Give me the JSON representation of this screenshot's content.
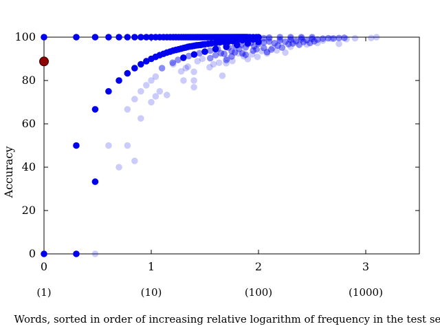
{
  "chart_data": {
    "type": "scatter",
    "title": "",
    "xlabel": "Words, sorted in order of increasing relative logarithm of frequency in the test set",
    "ylabel": "Accuracy",
    "xlim": [
      0,
      3.5
    ],
    "ylim": [
      0,
      100
    ],
    "x_ticks": [
      0,
      1,
      2,
      3
    ],
    "x_tick_labels": [
      "0",
      "1",
      "2",
      "3"
    ],
    "x_secondary_ticks": [
      0,
      1,
      2,
      3
    ],
    "x_secondary_tick_labels": [
      "(1)",
      "(10)",
      "(100)",
      "(1000)"
    ],
    "y_ticks": [
      0,
      20,
      40,
      60,
      80,
      100
    ],
    "y_tick_labels": [
      "0",
      "20",
      "40",
      "60",
      "80",
      "100"
    ],
    "grid": false,
    "legend": "none",
    "colors": {
      "point": "#0000ee",
      "highlight": "#8b0000",
      "axis": "#000000"
    },
    "highlight_point": {
      "x": 0,
      "y": 88.8
    },
    "series": [
      {
        "opacity": 1.0,
        "points": [
          [
            0,
            100
          ],
          [
            0,
            0
          ],
          [
            0.301,
            100
          ],
          [
            0.301,
            50
          ],
          [
            0.301,
            0
          ],
          [
            0.477,
            100
          ],
          [
            0.477,
            66.7
          ],
          [
            0.477,
            33.3
          ],
          [
            0.602,
            100
          ],
          [
            0.602,
            75
          ],
          [
            0.699,
            100
          ],
          [
            0.699,
            80
          ],
          [
            0.778,
            100
          ],
          [
            0.778,
            83.3
          ],
          [
            0.845,
            100
          ],
          [
            0.845,
            85.7
          ],
          [
            0.903,
            100
          ],
          [
            0.903,
            87.5
          ],
          [
            0.954,
            100
          ],
          [
            0.954,
            88.9
          ],
          [
            1.0,
            100
          ],
          [
            1.0,
            90
          ],
          [
            1.041,
            100
          ],
          [
            1.041,
            90.9
          ],
          [
            1.079,
            100
          ],
          [
            1.079,
            91.7
          ],
          [
            1.114,
            100
          ],
          [
            1.114,
            92.3
          ],
          [
            1.146,
            100
          ],
          [
            1.146,
            92.9
          ],
          [
            1.176,
            100
          ],
          [
            1.176,
            93.3
          ],
          [
            1.204,
            100
          ],
          [
            1.204,
            93.8
          ],
          [
            1.23,
            100
          ],
          [
            1.23,
            94.1
          ],
          [
            1.255,
            100
          ],
          [
            1.255,
            94.4
          ],
          [
            1.279,
            100
          ],
          [
            1.279,
            94.7
          ],
          [
            1.301,
            100
          ],
          [
            1.301,
            95
          ],
          [
            1.322,
            100
          ],
          [
            1.342,
            100
          ],
          [
            1.362,
            100
          ],
          [
            1.38,
            100
          ],
          [
            1.398,
            100
          ],
          [
            1.415,
            100
          ],
          [
            1.431,
            100
          ],
          [
            1.447,
            100
          ],
          [
            1.462,
            100
          ],
          [
            1.477,
            100
          ],
          [
            1.491,
            100
          ],
          [
            1.505,
            100
          ],
          [
            1.519,
            100
          ],
          [
            1.531,
            100
          ],
          [
            1.544,
            100
          ],
          [
            1.556,
            100
          ],
          [
            1.568,
            100
          ],
          [
            1.58,
            100
          ],
          [
            1.591,
            100
          ],
          [
            1.602,
            100
          ],
          [
            1.613,
            100
          ],
          [
            1.623,
            100
          ],
          [
            1.633,
            100
          ],
          [
            1.643,
            100
          ],
          [
            1.653,
            100
          ],
          [
            1.663,
            100
          ],
          [
            1.672,
            100
          ],
          [
            1.681,
            100
          ],
          [
            1.69,
            100
          ],
          [
            1.699,
            100
          ],
          [
            1.708,
            100
          ],
          [
            1.716,
            100
          ],
          [
            1.724,
            100
          ],
          [
            1.732,
            100
          ],
          [
            1.74,
            100
          ],
          [
            1.748,
            100
          ],
          [
            1.756,
            100
          ],
          [
            1.763,
            100
          ],
          [
            1.771,
            100
          ],
          [
            1.778,
            100
          ],
          [
            1.785,
            100
          ],
          [
            1.792,
            100
          ],
          [
            1.799,
            100
          ],
          [
            1.806,
            100
          ],
          [
            1.813,
            100
          ],
          [
            1.82,
            100
          ],
          [
            1.826,
            100
          ],
          [
            1.833,
            100
          ],
          [
            1.839,
            100
          ],
          [
            1.845,
            100
          ],
          [
            1.851,
            100
          ],
          [
            1.857,
            100
          ],
          [
            1.863,
            100
          ],
          [
            1.869,
            100
          ],
          [
            1.875,
            100
          ],
          [
            1.881,
            100
          ],
          [
            1.886,
            100
          ],
          [
            1.892,
            100
          ],
          [
            1.9,
            100
          ],
          [
            1.92,
            100
          ],
          [
            1.95,
            100
          ],
          [
            1.98,
            100
          ],
          [
            2.0,
            100
          ],
          [
            1.32,
            95.2
          ],
          [
            1.34,
            95.5
          ],
          [
            1.36,
            95.7
          ],
          [
            1.38,
            95.8
          ],
          [
            1.4,
            96
          ],
          [
            1.42,
            96.2
          ],
          [
            1.44,
            96.3
          ],
          [
            1.46,
            96.4
          ],
          [
            1.48,
            96.6
          ],
          [
            1.5,
            96.7
          ],
          [
            1.53,
            96.9
          ],
          [
            1.56,
            97.1
          ],
          [
            1.6,
            97.3
          ],
          [
            1.64,
            97.6
          ],
          [
            1.68,
            97.8
          ],
          [
            1.72,
            98
          ],
          [
            1.76,
            98.2
          ],
          [
            1.8,
            98.4
          ],
          [
            1.85,
            98.6
          ],
          [
            1.9,
            98.7
          ],
          [
            1.95,
            98.9
          ],
          [
            1.3,
            90.5
          ],
          [
            1.4,
            92
          ],
          [
            1.5,
            93.3
          ],
          [
            1.6,
            94.5
          ],
          [
            1.7,
            95.5
          ],
          [
            1.8,
            96.4
          ],
          [
            1.9,
            97.2
          ],
          [
            2.0,
            97.8
          ]
        ]
      },
      {
        "opacity": 0.45,
        "points": [
          [
            1.1,
            85.7
          ],
          [
            1.2,
            88.2
          ],
          [
            1.25,
            89.5
          ],
          [
            1.35,
            91.3
          ],
          [
            1.45,
            92.6
          ],
          [
            1.55,
            93.8
          ],
          [
            1.62,
            94.6
          ],
          [
            1.65,
            92.6
          ],
          [
            1.72,
            95.2
          ],
          [
            1.75,
            93.5
          ],
          [
            1.78,
            96
          ],
          [
            1.82,
            94.6
          ],
          [
            1.84,
            96.5
          ],
          [
            1.88,
            95.3
          ],
          [
            1.9,
            96.8
          ],
          [
            1.93,
            97.4
          ],
          [
            1.96,
            95.8
          ],
          [
            2.0,
            96.9
          ],
          [
            2.05,
            97.6
          ],
          [
            2.1,
            98
          ],
          [
            2.15,
            97.2
          ],
          [
            2.2,
            98.4
          ],
          [
            2.25,
            97.9
          ],
          [
            2.3,
            98.7
          ],
          [
            2.35,
            98.3
          ],
          [
            2.4,
            99
          ],
          [
            2.45,
            98.6
          ],
          [
            2.5,
            99.2
          ],
          [
            2.55,
            98.9
          ],
          [
            2.6,
            99.3
          ],
          [
            2.65,
            99.5
          ],
          [
            2.7,
            99.4
          ],
          [
            2.75,
            99.6
          ],
          [
            2.8,
            99.7
          ],
          [
            2.05,
            99.5
          ],
          [
            2.1,
            99.8
          ],
          [
            2.2,
            100
          ],
          [
            2.3,
            100
          ],
          [
            2.4,
            100
          ],
          [
            2.5,
            100
          ],
          [
            1.55,
            90.3
          ],
          [
            1.6,
            91.7
          ],
          [
            1.68,
            92.3
          ],
          [
            1.75,
            91.1
          ],
          [
            1.85,
            92.5
          ],
          [
            1.95,
            93.8
          ],
          [
            2.05,
            95
          ],
          [
            2.12,
            94.3
          ],
          [
            2.18,
            96.1
          ],
          [
            2.22,
            95.2
          ],
          [
            2.28,
            96.8
          ],
          [
            2.32,
            97.1
          ],
          [
            2.38,
            96.5
          ],
          [
            2.42,
            97.8
          ],
          [
            2.48,
            97.3
          ],
          [
            2.52,
            98.1
          ],
          [
            1.7,
            89.5
          ],
          [
            1.78,
            93
          ],
          [
            1.88,
            91.9
          ],
          [
            1.98,
            94.4
          ],
          [
            2.08,
            93.1
          ]
        ]
      },
      {
        "opacity": 0.2,
        "points": [
          [
            0.477,
            0
          ],
          [
            0.602,
            50
          ],
          [
            0.699,
            40
          ],
          [
            0.778,
            66.7
          ],
          [
            0.778,
            50
          ],
          [
            0.845,
            42.9
          ],
          [
            0.845,
            71.4
          ],
          [
            0.903,
            62.5
          ],
          [
            0.903,
            75
          ],
          [
            0.954,
            77.8
          ],
          [
            1.0,
            70
          ],
          [
            1.0,
            80
          ],
          [
            1.041,
            72.7
          ],
          [
            1.041,
            81.8
          ],
          [
            1.079,
            75
          ],
          [
            1.146,
            73.3
          ],
          [
            1.204,
            87.5
          ],
          [
            1.279,
            84.2
          ],
          [
            1.301,
            80
          ],
          [
            1.322,
            85.7
          ],
          [
            1.342,
            86.4
          ],
          [
            1.398,
            84
          ],
          [
            1.398,
            80
          ],
          [
            1.398,
            76.9
          ],
          [
            1.431,
            88.9
          ],
          [
            1.477,
            90
          ],
          [
            1.544,
            86.1
          ],
          [
            1.58,
            87.5
          ],
          [
            1.633,
            88.2
          ],
          [
            1.663,
            82.2
          ],
          [
            1.699,
            88
          ],
          [
            1.708,
            90.2
          ],
          [
            1.756,
            89
          ],
          [
            1.813,
            92.5
          ],
          [
            1.863,
            91.2
          ],
          [
            1.9,
            89.9
          ],
          [
            1.94,
            92.1
          ],
          [
            1.99,
            90.9
          ],
          [
            2.03,
            93.6
          ],
          [
            2.08,
            92.5
          ],
          [
            2.13,
            95.1
          ],
          [
            2.17,
            93.9
          ],
          [
            2.25,
            92.9
          ],
          [
            2.3,
            95.6
          ],
          [
            2.35,
            97.7
          ],
          [
            2.45,
            96.6
          ],
          [
            2.55,
            97.3
          ],
          [
            2.6,
            98.4
          ],
          [
            2.68,
            99.3
          ],
          [
            2.75,
            96.9
          ],
          [
            2.82,
            99.1
          ],
          [
            2.9,
            99.5
          ],
          [
            3.05,
            99.6
          ],
          [
            3.1,
            100
          ],
          [
            2.0,
            99
          ],
          [
            2.1,
            99.3
          ],
          [
            2.2,
            99.1
          ],
          [
            2.3,
            99.4
          ],
          [
            2.4,
            99.6
          ]
        ]
      }
    ]
  }
}
